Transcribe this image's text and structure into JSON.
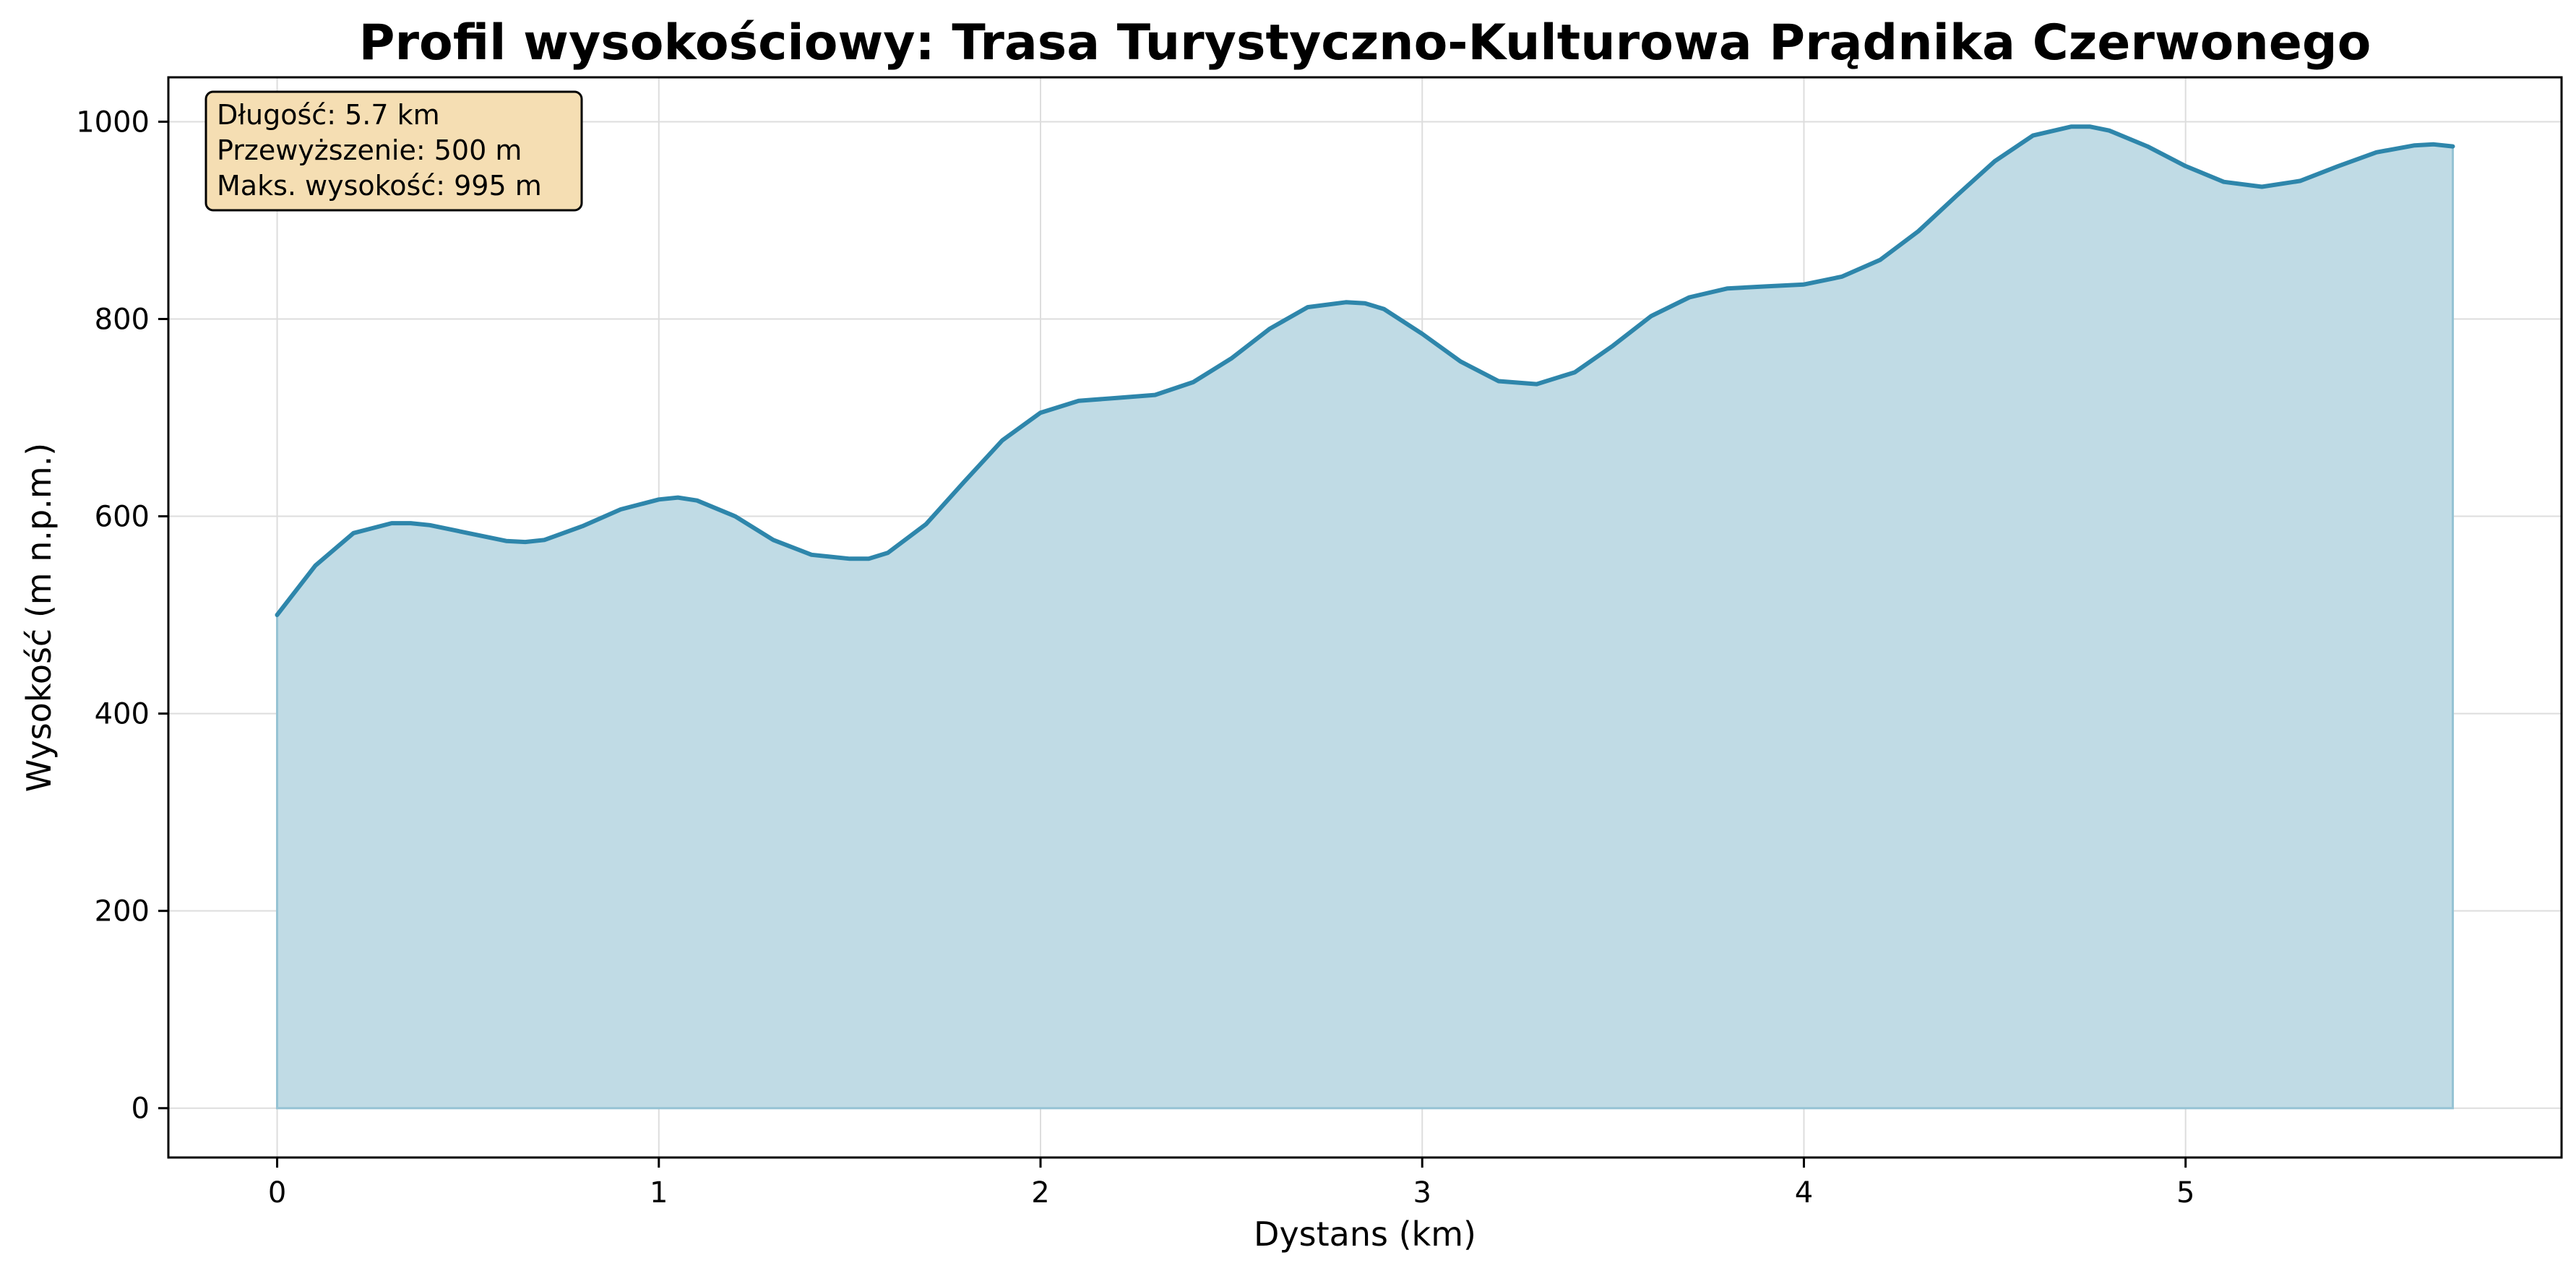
{
  "chart_data": {
    "type": "area",
    "title": "Profil wysokościowy: Trasa Turystyczno-Kulturowa Prądnika Czerwonego",
    "xlabel": "Dystans (km)",
    "ylabel": "Wysokość (m n.p.m.)",
    "xlim": [
      -0.285,
      5.985
    ],
    "ylim": [
      -50,
      1045
    ],
    "xticks": [
      0,
      1,
      2,
      3,
      4,
      5
    ],
    "yticks": [
      0,
      200,
      400,
      600,
      800,
      1000
    ],
    "grid": true,
    "line_color": "#2e86ab",
    "fill_color": "#c0dbe5",
    "fill_edge_color": "#96c3d4",
    "info_box": {
      "lines": [
        "Długość: 5.7 km",
        "Przewyższenie: 500 m",
        "Maks. wysokość: 995 m"
      ],
      "placement": "top-left",
      "background": "#f5deb3"
    },
    "series": [
      {
        "x": [
          0,
          0.1,
          0.2,
          0.3,
          0.35,
          0.4,
          0.5,
          0.6,
          0.65,
          0.7,
          0.8,
          0.9,
          1.0,
          1.05,
          1.1,
          1.2,
          1.3,
          1.4,
          1.5,
          1.55,
          1.6,
          1.7,
          1.8,
          1.9,
          2.0,
          2.1,
          2.2,
          2.3,
          2.4,
          2.5,
          2.6,
          2.7,
          2.8,
          2.85,
          2.9,
          3.0,
          3.1,
          3.2,
          3.3,
          3.4,
          3.5,
          3.6,
          3.7,
          3.8,
          3.9,
          4.0,
          4.1,
          4.2,
          4.3,
          4.4,
          4.5,
          4.6,
          4.7,
          4.75,
          4.8,
          4.9,
          5.0,
          5.1,
          5.2,
          5.3,
          5.4,
          5.5,
          5.6,
          5.65,
          5.7
        ],
        "y": [
          500,
          550,
          583,
          593,
          593,
          591,
          583,
          575,
          574,
          576,
          590,
          607,
          617,
          619,
          616,
          600,
          576,
          561,
          557,
          557,
          563,
          592,
          635,
          677,
          705,
          717,
          720,
          723,
          736,
          760,
          790,
          812,
          817,
          816,
          810,
          785,
          757,
          737,
          734,
          746,
          773,
          803,
          822,
          831,
          833,
          835,
          843,
          860,
          889,
          925,
          960,
          986,
          995,
          995,
          991,
          975,
          955,
          939,
          934,
          940,
          955,
          969,
          976,
          977,
          975
        ]
      }
    ]
  }
}
